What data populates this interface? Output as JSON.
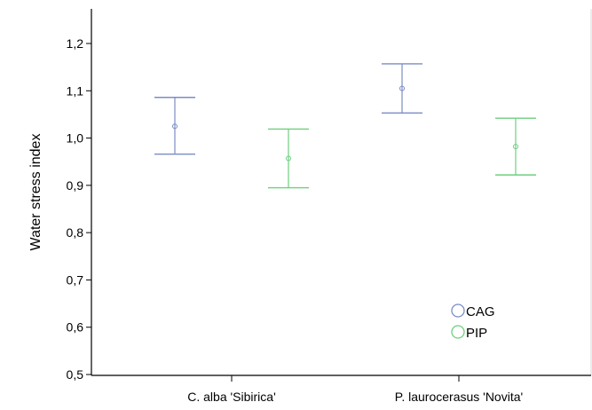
{
  "chart_data": {
    "type": "errorbar",
    "title": "",
    "xlabel": "",
    "ylabel": "Water stress index",
    "ylim": [
      0.5,
      1.25
    ],
    "yticks": [
      "0,5",
      "0,6",
      "0,7",
      "0,8",
      "0,9",
      "1,0",
      "1,1",
      "1,2"
    ],
    "ytick_values": [
      0.5,
      0.6,
      0.7,
      0.8,
      0.9,
      1.0,
      1.1,
      1.2
    ],
    "categories": [
      "C. alba 'Sibirica'",
      "P. laurocerasus 'Novita'"
    ],
    "grid": false,
    "legend_position": "bottom-right",
    "series": [
      {
        "name": "CAG",
        "color": "#7b8cc4",
        "mean": [
          1.025,
          1.105
        ],
        "lower": [
          0.966,
          1.053
        ],
        "upper": [
          1.086,
          1.157
        ]
      },
      {
        "name": "PIP",
        "color": "#6ecf7e",
        "mean": [
          0.957,
          0.982
        ],
        "lower": [
          0.895,
          0.922
        ],
        "upper": [
          1.019,
          1.042
        ]
      }
    ]
  }
}
